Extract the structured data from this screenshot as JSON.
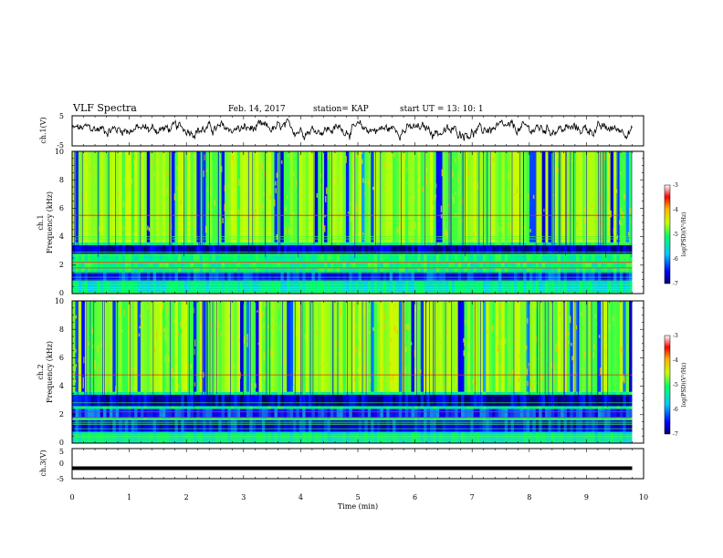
{
  "header": {
    "title": "VLF Spectra",
    "date": "Feb. 14, 2017",
    "station": "station= KAP",
    "start": "start  UT =   13: 10: 1"
  },
  "chart_data": [
    {
      "type": "line",
      "name": "ch1-waveform",
      "ylabel": "ch.1(V)",
      "ylim": [
        -5,
        5
      ],
      "yticks": [
        "5",
        "-5"
      ],
      "x_range_min": [
        0,
        9.8
      ]
    },
    {
      "type": "heatmap",
      "name": "ch1-spectrogram",
      "ylabel_line1": "ch.1",
      "ylabel_line2": "Frequency (kHz)",
      "ylim_khz": [
        0,
        10
      ],
      "yticks": [
        "0",
        "2",
        "4",
        "6",
        "8",
        "10"
      ],
      "colorbar": {
        "label": "log(PSD)(V²/Hz)",
        "range": [
          -7,
          -3
        ],
        "ticks": [
          "-3",
          "-4",
          "-5",
          "-6",
          "-7"
        ]
      },
      "bands": [
        {
          "freq_khz": [
            3.4,
            2.8
          ],
          "level": -6.8
        },
        {
          "freq_khz": [
            2.2,
            1.8
          ],
          "level": -5.2
        },
        {
          "freq_khz": [
            1.5,
            0.9
          ],
          "level": -6.4
        },
        {
          "freq_khz": [
            0.9,
            0.0
          ],
          "level": -5.4
        }
      ],
      "lines_khz": [
        5.5,
        2.2,
        1.8
      ]
    },
    {
      "type": "heatmap",
      "name": "ch2-spectrogram",
      "ylabel_line1": "ch.2",
      "ylabel_line2": "Frequency (kHz)",
      "ylim_khz": [
        0,
        10
      ],
      "yticks": [
        "0",
        "2",
        "4",
        "6",
        "8",
        "10"
      ],
      "colorbar": {
        "label": "log(PSD)(V²/Hz)",
        "range": [
          -7,
          -3
        ],
        "ticks": [
          "-3",
          "-4",
          "-5",
          "-6",
          "-7"
        ]
      },
      "bands": [
        {
          "freq_khz": [
            3.4,
            2.6
          ],
          "level": -6.7
        },
        {
          "freq_khz": [
            2.4,
            1.8
          ],
          "level": -6.3
        },
        {
          "freq_khz": [
            1.6,
            0.8
          ],
          "level": -6.5
        },
        {
          "freq_khz": [
            0.8,
            0.0
          ],
          "level": -5.5
        }
      ],
      "lines_khz": [
        4.8,
        2.2,
        1.8
      ]
    },
    {
      "type": "line",
      "name": "ch3-waveform",
      "ylabel": "ch.3(V)",
      "ylim": [
        -5,
        5
      ],
      "yticks": [
        "5",
        "0",
        "-5"
      ],
      "constant_value": -1.5,
      "x_range_min": [
        0,
        9.8
      ]
    }
  ],
  "x_axis": {
    "label": "Time  (min)",
    "range": [
      0,
      10
    ],
    "ticks": [
      "0",
      "1",
      "2",
      "3",
      "4",
      "5",
      "6",
      "7",
      "8",
      "9",
      "10"
    ]
  }
}
